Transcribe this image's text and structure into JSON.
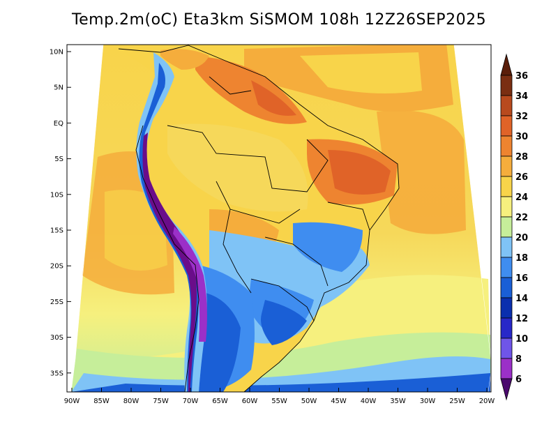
{
  "title": "Temp.2m(oC) Eta3km SiSMOM 108h 12Z26SEP2025",
  "lat_labels": [
    "10N",
    "5N",
    "EQ",
    "5S",
    "10S",
    "15S",
    "20S",
    "25S",
    "30S",
    "35S"
  ],
  "lon_labels": [
    "90W",
    "85W",
    "80W",
    "75W",
    "70W",
    "65W",
    "60W",
    "55W",
    "50W",
    "45W",
    "40W",
    "35W",
    "30W",
    "25W",
    "20W"
  ],
  "colorbar": {
    "units": "oC",
    "levels": [
      6,
      8,
      10,
      12,
      14,
      16,
      18,
      20,
      22,
      24,
      26,
      28,
      30,
      32,
      34,
      36
    ],
    "labels": [
      "6",
      "8",
      "10",
      "12",
      "14",
      "16",
      "18",
      "20",
      "22",
      "24",
      "26",
      "28",
      "30",
      "32",
      "34",
      "36"
    ],
    "colors": [
      "#6a0d8a",
      "#9b30c8",
      "#6f55e8",
      "#2828c8",
      "#0a2fae",
      "#1a5fd6",
      "#3f8df0",
      "#7fc3f6",
      "#c6ee9a",
      "#f6f07e",
      "#f8d44a",
      "#f5ad3c",
      "#ee8430",
      "#e06328",
      "#b84a1e",
      "#7a2e12"
    ],
    "under_color": "#4b0a6e",
    "over_color": "#5a1e0a"
  }
}
